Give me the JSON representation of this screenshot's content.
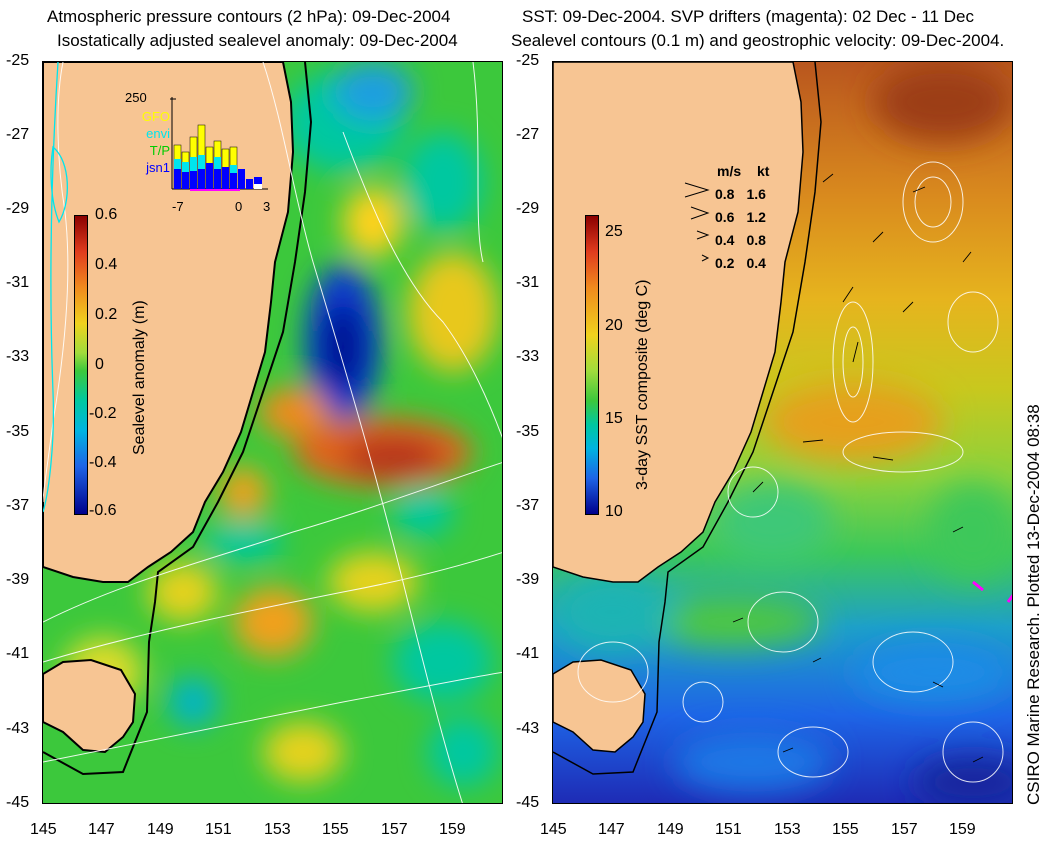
{
  "left_panel": {
    "title_line1": "Atmospheric pressure contours (2 hPa): 09-Dec-2004",
    "title_line2": "Isostatically adjusted sealevel anomaly: 09-Dec-2004",
    "colorbar": {
      "label": "Sealevel anomaly (m)",
      "ticks": [
        "0.6",
        "0.4",
        "0.2",
        "0",
        "-0.2",
        "-0.4",
        "-0.6"
      ]
    },
    "inset": {
      "ymax_label": "250",
      "legend": [
        {
          "label": "GFO",
          "color": "#ffff00"
        },
        {
          "label": "envi",
          "color": "#00e5ee"
        },
        {
          "label": "T/P",
          "color": "#00cc00"
        },
        {
          "label": "jsn1",
          "color": "#0000ff"
        }
      ],
      "xticks": [
        "-7",
        "0",
        "3"
      ]
    }
  },
  "right_panel": {
    "title_line1": "SST: 09-Dec-2004. SVP drifters (magenta): 02 Dec - 11 Dec",
    "title_line2": "Sealevel contours (0.1 m) and geostrophic velocity: 09-Dec-2004.",
    "colorbar": {
      "label": "3-day SST composite (deg C)",
      "ticks": [
        "25",
        "20",
        "15",
        "10"
      ]
    },
    "velocity_legend": {
      "header_ms": "m/s",
      "header_kt": "kt",
      "rows": [
        {
          "ms": "0.8",
          "kt": "1.6"
        },
        {
          "ms": "0.6",
          "kt": "1.2"
        },
        {
          "ms": "0.4",
          "kt": "0.8"
        },
        {
          "ms": "0.2",
          "kt": "0.4"
        }
      ]
    }
  },
  "axes": {
    "lat_ticks": [
      "-25",
      "-27",
      "-29",
      "-31",
      "-33",
      "-35",
      "-37",
      "-39",
      "-41",
      "-43",
      "-45"
    ],
    "lon_ticks": [
      "145",
      "147",
      "149",
      "151",
      "153",
      "155",
      "157",
      "159"
    ]
  },
  "credit": "CSIRO Marine Research. Plotted 13-Dec-2004 08:38",
  "colors": {
    "land": "#f7c593",
    "ocean_anomaly_base": "#3cc83c",
    "sst_base": "#7ccf2a"
  }
}
